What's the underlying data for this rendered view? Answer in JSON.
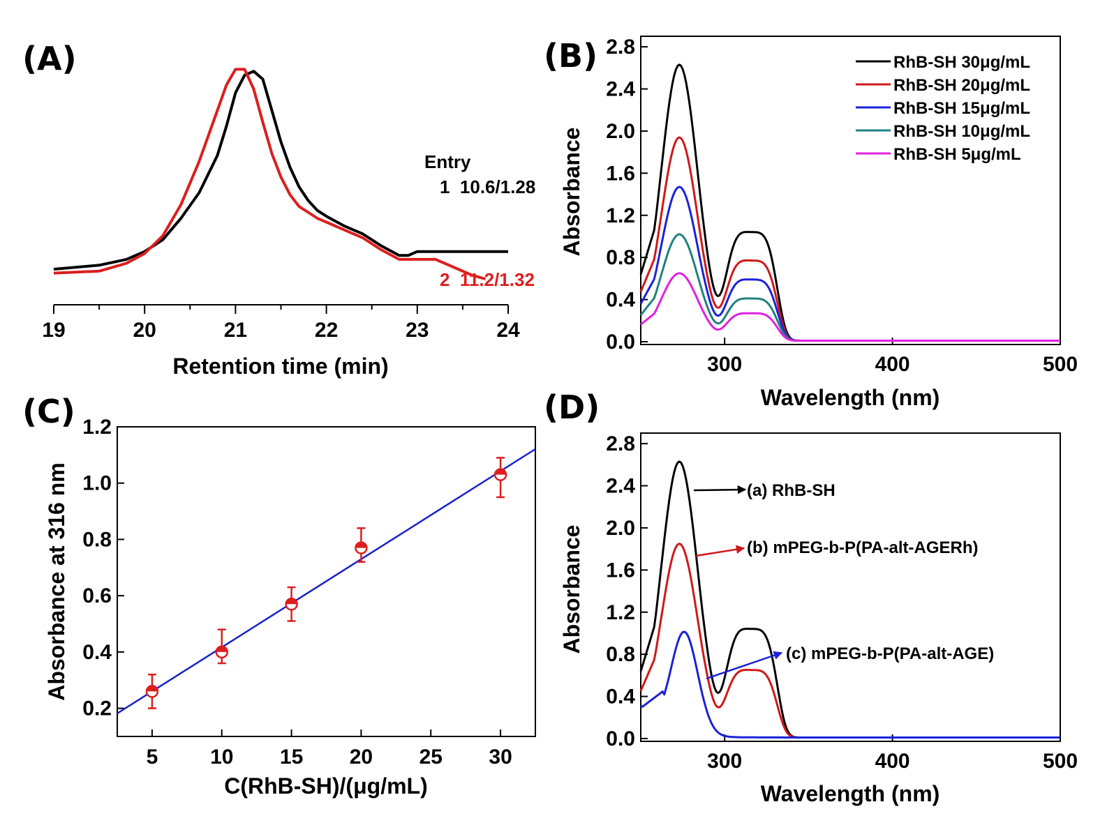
{
  "chart_data": [
    {
      "panel": "(A)",
      "type": "line",
      "xlabel": "Retention time (min)",
      "ylabel": "",
      "xlim": [
        19,
        24
      ],
      "ylim": [
        0,
        1.1
      ],
      "xticks": [
        19,
        20,
        21,
        22,
        23,
        24
      ],
      "annotations": {
        "header": "Entry",
        "entry1": "1  10.6/1.28",
        "entry2": "2  11.2/1.32"
      },
      "series": [
        {
          "name": "1",
          "color": "#000000",
          "x": [
            19.0,
            19.5,
            19.8,
            20.0,
            20.2,
            20.4,
            20.6,
            20.8,
            20.9,
            21.0,
            21.1,
            21.2,
            21.3,
            21.4,
            21.5,
            21.6,
            21.7,
            21.8,
            21.9,
            22.0,
            22.2,
            22.4,
            22.6,
            22.8,
            22.9,
            23.0,
            23.5,
            24.0
          ],
          "y": [
            0.05,
            0.07,
            0.1,
            0.14,
            0.2,
            0.31,
            0.44,
            0.63,
            0.78,
            0.95,
            1.04,
            1.06,
            1.02,
            0.86,
            0.7,
            0.57,
            0.47,
            0.4,
            0.35,
            0.32,
            0.27,
            0.23,
            0.17,
            0.12,
            0.12,
            0.14,
            0.14,
            0.14
          ]
        },
        {
          "name": "2",
          "color": "#dc1e1e",
          "x": [
            19.0,
            19.5,
            19.8,
            20.0,
            20.2,
            20.4,
            20.6,
            20.8,
            20.9,
            21.0,
            21.1,
            21.2,
            21.3,
            21.4,
            21.5,
            21.6,
            21.7,
            21.8,
            21.9,
            22.0,
            22.2,
            22.4,
            22.6,
            22.8,
            23.0,
            23.2,
            23.4,
            23.6,
            23.75
          ],
          "y": [
            0.03,
            0.04,
            0.08,
            0.13,
            0.22,
            0.38,
            0.6,
            0.86,
            0.99,
            1.07,
            1.07,
            0.97,
            0.8,
            0.64,
            0.52,
            0.43,
            0.37,
            0.34,
            0.31,
            0.29,
            0.25,
            0.21,
            0.15,
            0.1,
            0.1,
            0.1,
            0.06,
            0.02,
            0.0
          ]
        }
      ]
    },
    {
      "panel": "(B)",
      "type": "line",
      "xlabel": "Wavelength (nm)",
      "ylabel": "Absorbance",
      "xlim": [
        250,
        500
      ],
      "ylim": [
        0,
        2.9
      ],
      "xticks": [
        300,
        400,
        500
      ],
      "yticks": [
        "0.0",
        "0.4",
        "0.8",
        "1.2",
        "1.6",
        "2.0",
        "2.4",
        "2.8"
      ],
      "legend_position": "top-right",
      "series": [
        {
          "name": "RhB-SH 30μg/mL",
          "color": "#000000",
          "peak": 2.62,
          "shoulder": 1.03
        },
        {
          "name": "RhB-SH 20μg/mL",
          "color": "#d01818",
          "peak": 1.93,
          "shoulder": 0.76
        },
        {
          "name": "RhB-SH 15μg/mL",
          "color": "#1a22d8",
          "peak": 1.46,
          "shoulder": 0.58
        },
        {
          "name": "RhB-SH 10μg/mL",
          "color": "#1f8080",
          "peak": 1.01,
          "shoulder": 0.4
        },
        {
          "name": "RhB-SH   5μg/mL",
          "color": "#e020e0",
          "peak": 0.64,
          "shoulder": 0.26
        }
      ]
    },
    {
      "panel": "(C)",
      "type": "scatter",
      "xlabel": "C(RhB-SH)/(μg/mL)",
      "ylabel": "Absorbance at 316 nm",
      "xlim": [
        2.5,
        32.5
      ],
      "ylim": [
        0.1,
        1.2
      ],
      "xticks": [
        5,
        10,
        15,
        20,
        25,
        30
      ],
      "yticks": [
        "0.2",
        "0.4",
        "0.6",
        "0.8",
        "1.0",
        "1.2"
      ],
      "x": [
        5,
        10,
        15,
        20,
        30
      ],
      "y": [
        0.26,
        0.4,
        0.57,
        0.77,
        1.03
      ],
      "error_high": [
        0.32,
        0.48,
        0.63,
        0.84,
        1.09
      ],
      "error_low": [
        0.2,
        0.36,
        0.51,
        0.72,
        0.95
      ],
      "fit_line": {
        "x": [
          2.5,
          32.5
        ],
        "y": [
          0.182,
          1.121
        ],
        "color": "#1a22c8"
      },
      "marker_color": "#dc1e1e"
    },
    {
      "panel": "(D)",
      "type": "line",
      "xlabel": "Wavelength (nm)",
      "ylabel": "Absorbance",
      "xlim": [
        250,
        500
      ],
      "ylim": [
        0,
        2.9
      ],
      "xticks": [
        300,
        400,
        500
      ],
      "yticks": [
        "0.0",
        "0.4",
        "0.8",
        "1.2",
        "1.6",
        "2.0",
        "2.4",
        "2.8"
      ],
      "series": [
        {
          "name": "(a) RhB-SH",
          "color": "#000000",
          "peak": 2.62,
          "shoulder": 1.03
        },
        {
          "name": "(b) mPEG-b-P(PA-alt-AGERh)",
          "color": "#d01818",
          "peak": 1.84,
          "shoulder": 0.64
        },
        {
          "name": "(c) mPEG-b-P(PA-alt-AGE)",
          "color": "#1a22d8",
          "peak": 0.97,
          "shoulder": 0.0
        }
      ]
    }
  ]
}
